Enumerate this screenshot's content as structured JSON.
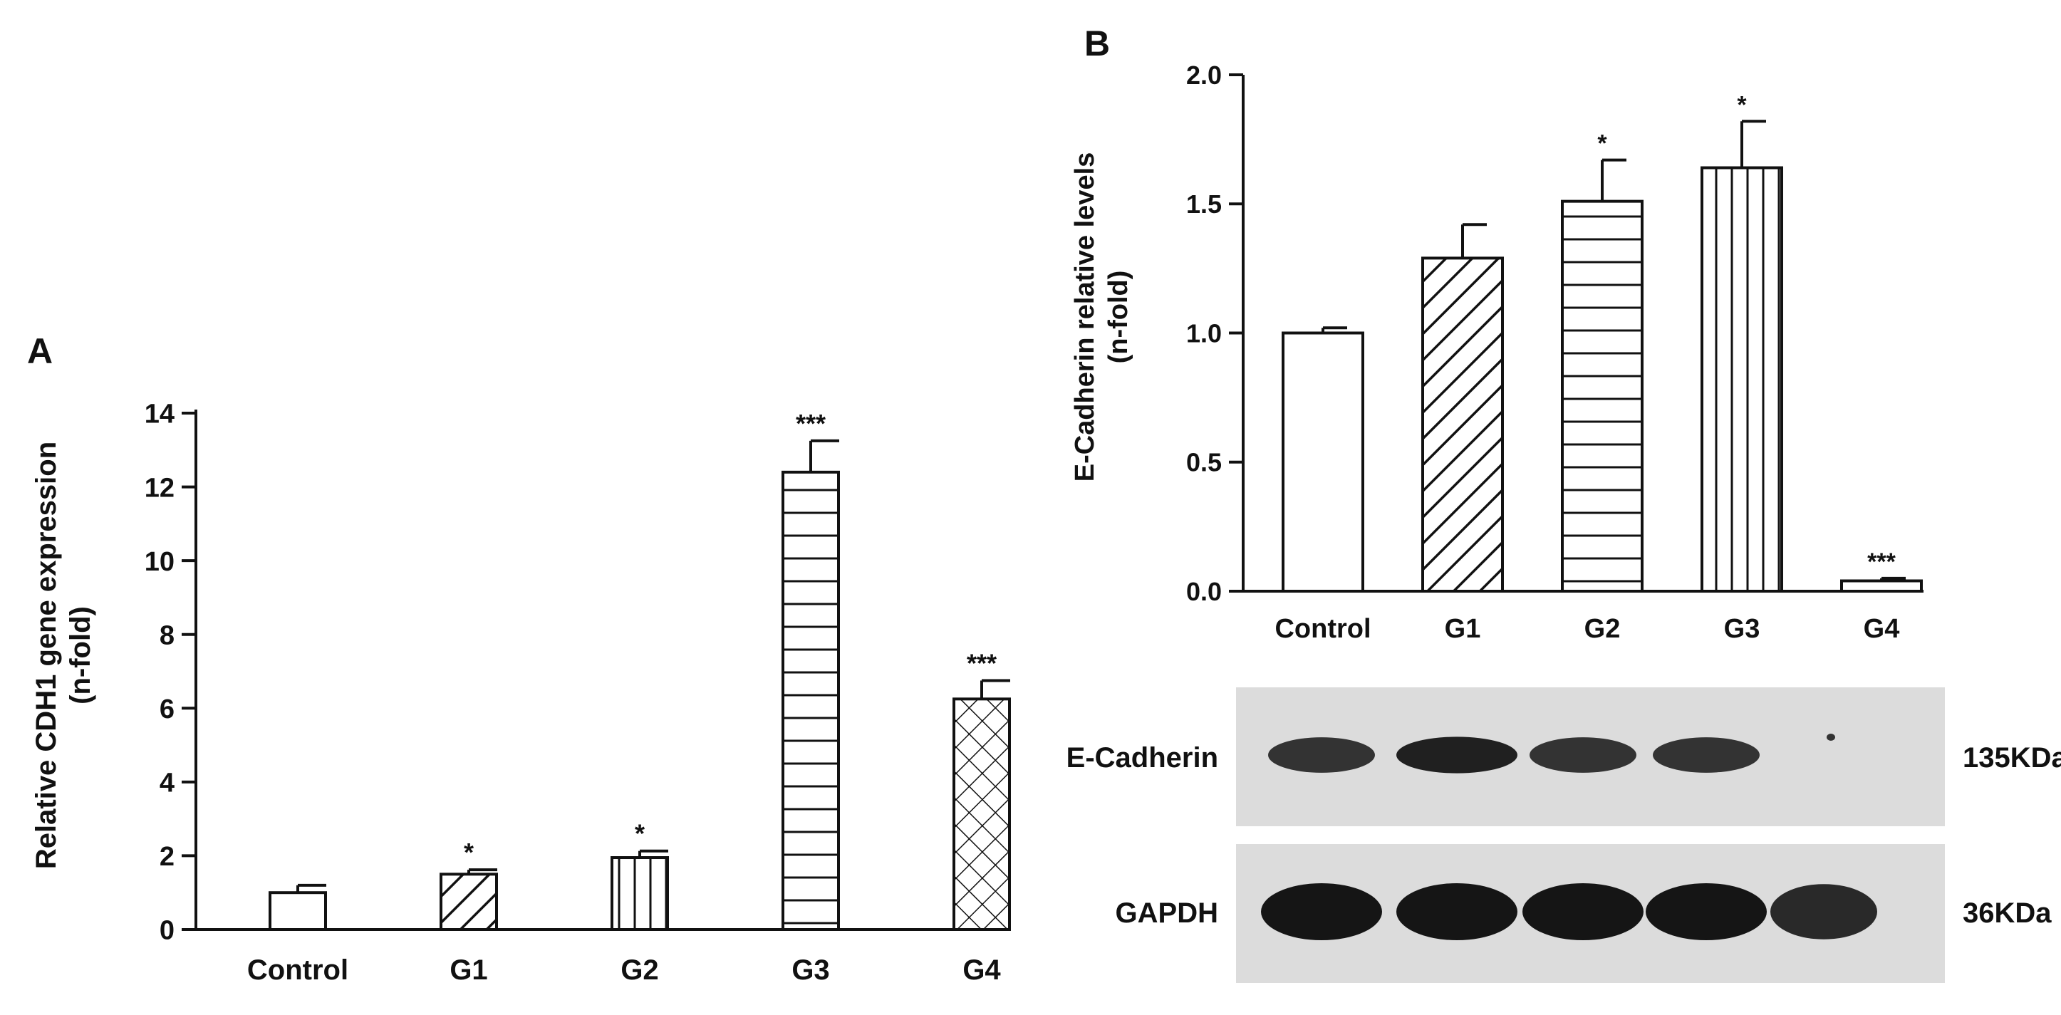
{
  "chart_data": [
    {
      "panel": "A",
      "type": "bar",
      "title": "",
      "ylabel": "Relative CDH1 gene expression",
      "ylabel_sub": "(n-fold)",
      "xlabel": "",
      "categories": [
        "Control",
        "G1",
        "G2",
        "G3",
        "G4"
      ],
      "values": [
        1.0,
        1.5,
        1.95,
        12.4,
        6.25
      ],
      "errors": [
        0.2,
        0.12,
        0.18,
        0.85,
        0.5
      ],
      "significance": [
        "",
        "*",
        "*",
        "***",
        "***"
      ],
      "patterns": [
        "none",
        "diagonal",
        "vertical",
        "horizontal",
        "crosshatch"
      ],
      "ylim": [
        0,
        14
      ],
      "yticks": [
        0,
        2,
        4,
        6,
        8,
        10,
        12,
        14
      ],
      "ytick_labels": [
        "0",
        "2",
        "4",
        "6",
        "8",
        "10",
        "12",
        "14"
      ]
    },
    {
      "panel": "B",
      "type": "bar",
      "title": "",
      "ylabel": "E-Cadherin relative levels",
      "ylabel_sub": "(n-fold)",
      "xlabel": "",
      "categories": [
        "Control",
        "G1",
        "G2",
        "G3",
        "G4"
      ],
      "values": [
        1.0,
        1.29,
        1.51,
        1.64,
        0.04
      ],
      "errors": [
        0.02,
        0.13,
        0.16,
        0.18,
        0.01
      ],
      "significance": [
        "",
        "",
        "*",
        "*",
        "***"
      ],
      "patterns": [
        "none",
        "diagonal",
        "horizontal",
        "vertical",
        "none"
      ],
      "ylim": [
        0,
        2.0
      ],
      "yticks": [
        0,
        0.5,
        1.0,
        1.5,
        2.0
      ],
      "ytick_labels": [
        "0.0",
        "0.5",
        "1.0",
        "1.5",
        "2.0"
      ]
    }
  ],
  "panels": {
    "a": "A",
    "b": "B"
  },
  "western_blot": {
    "rows": [
      {
        "protein": "E-Cadherin",
        "size": "135KDa",
        "band_intensity": [
          0.85,
          0.95,
          0.85,
          0.85,
          0.05
        ]
      },
      {
        "protein": "GAPDH",
        "size": "36KDa",
        "band_intensity": [
          1.0,
          1.0,
          1.0,
          1.0,
          0.9
        ]
      }
    ]
  }
}
